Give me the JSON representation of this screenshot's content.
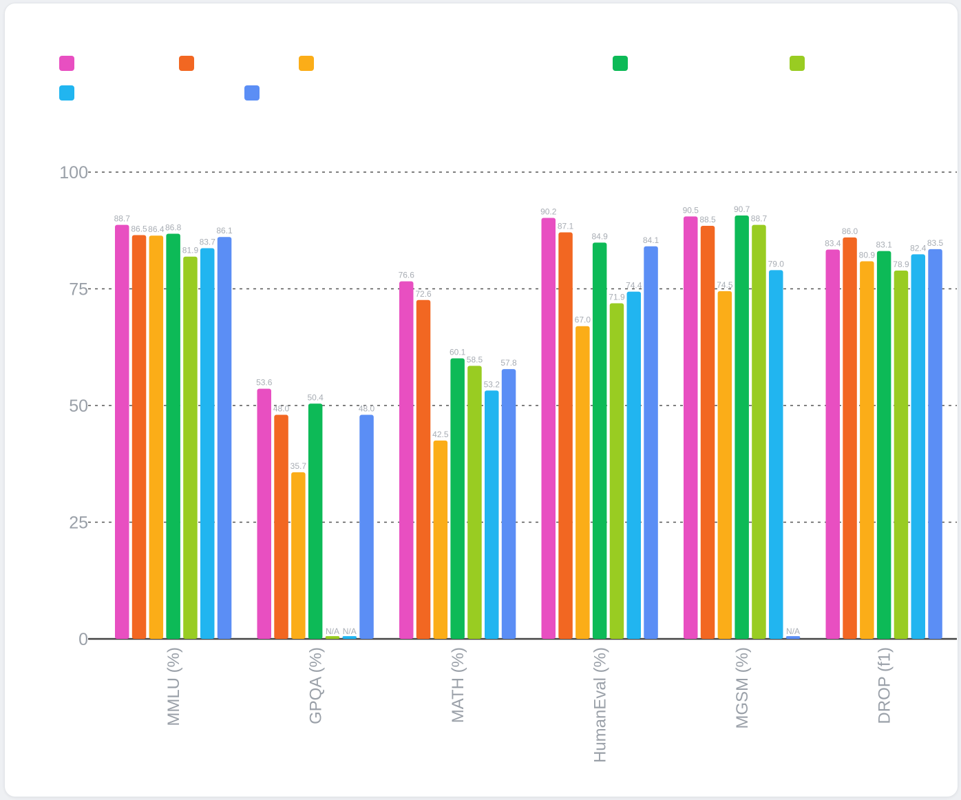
{
  "chart_data": {
    "type": "bar",
    "title": "",
    "xlabel": "",
    "ylabel": "",
    "ylim": [
      0,
      100
    ],
    "yticks": [
      0,
      25,
      50,
      75,
      100
    ],
    "grid": true,
    "legend_position": "top-left",
    "categories": [
      "MMLU (%)",
      "GPQA (%)",
      "MATH (%)",
      "HumanEval (%)",
      "MGSM (%)",
      "DROP (f1)"
    ],
    "series": [
      {
        "color": "#e84fc1",
        "values": [
          88.7,
          53.6,
          76.6,
          90.2,
          90.5,
          83.4
        ],
        "labels": [
          "88.7",
          "53.6",
          "76.6",
          "90.2",
          "90.5",
          "83.4"
        ]
      },
      {
        "color": "#f26722",
        "values": [
          86.5,
          48.0,
          72.6,
          87.1,
          88.5,
          86.0
        ],
        "labels": [
          "86.5",
          "48.0",
          "72.6",
          "87.1",
          "88.5",
          "86.0"
        ]
      },
      {
        "color": "#fbad18",
        "values": [
          86.4,
          35.7,
          42.5,
          67.0,
          74.5,
          80.9
        ],
        "labels": [
          "86.4",
          "35.7",
          "42.5",
          "67.0",
          "74.5",
          "80.9"
        ]
      },
      {
        "color": "#0dba57",
        "values": [
          86.8,
          50.4,
          60.1,
          84.9,
          90.7,
          83.1
        ],
        "labels": [
          "86.8",
          "50.4",
          "60.1",
          "84.9",
          "90.7",
          "83.1"
        ]
      },
      {
        "color": "#99cc22",
        "values": [
          81.9,
          0,
          58.5,
          71.9,
          88.7,
          78.9
        ],
        "labels": [
          "81.9",
          "N/A",
          "58.5",
          "71.9",
          "88.7",
          "78.9"
        ]
      },
      {
        "color": "#21b5f0",
        "values": [
          83.7,
          0,
          53.2,
          74.4,
          79.0,
          82.4
        ],
        "labels": [
          "83.7",
          "N/A",
          "53.2",
          "74.4",
          "79.0",
          "82.4"
        ]
      },
      {
        "color": "#5b8ef5",
        "values": [
          86.1,
          48.0,
          57.8,
          84.1,
          0,
          83.5
        ],
        "labels": [
          "86.1",
          "48.0",
          "57.8",
          "84.1",
          "N/A",
          "83.5"
        ]
      }
    ]
  }
}
